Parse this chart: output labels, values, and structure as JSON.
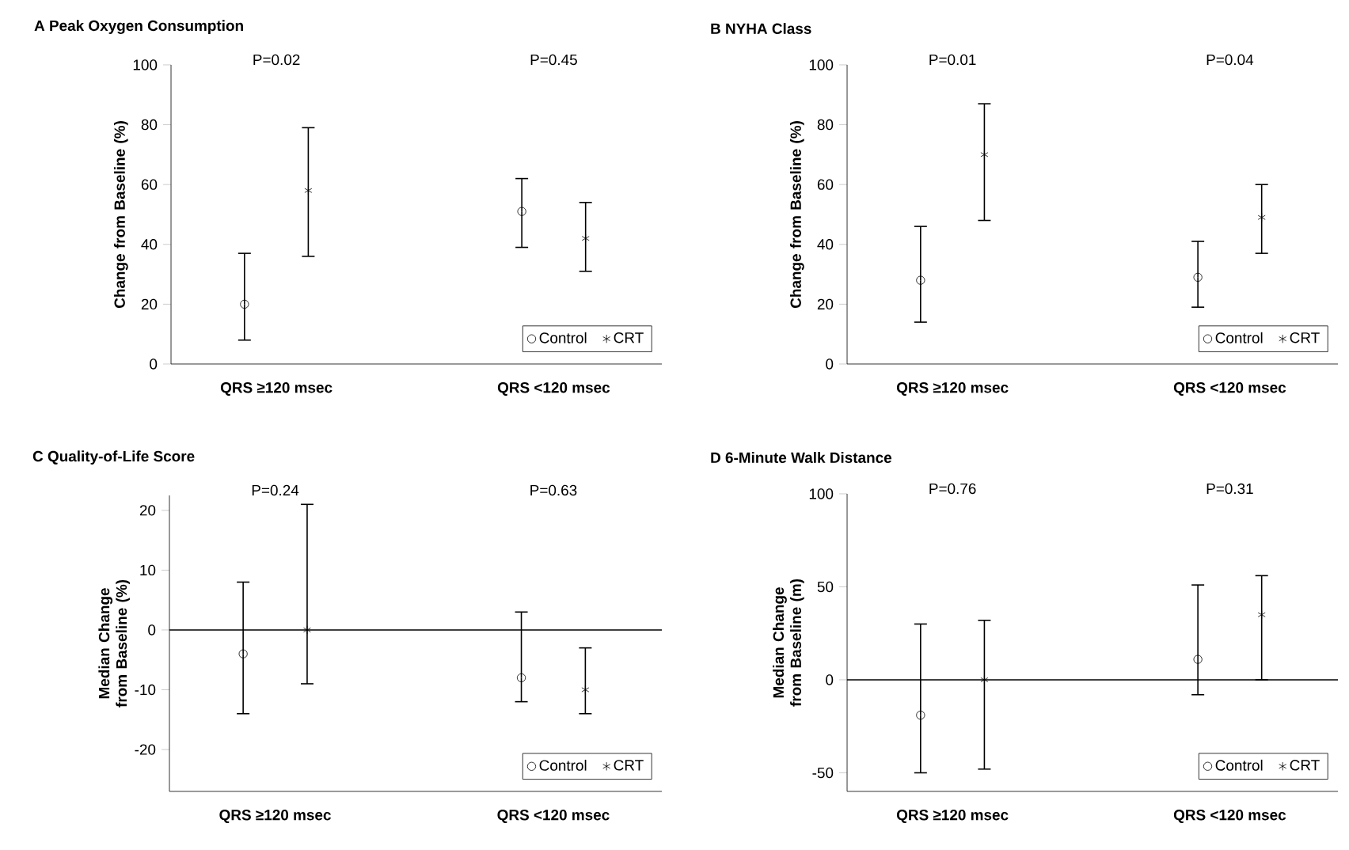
{
  "chart_data": [
    {
      "type": "scatter",
      "title": "A  Peak Oxygen Consumption",
      "ylabel": "Change from Baseline (%)",
      "categories": [
        "QRS ≥120 msec",
        "QRS <120 msec"
      ],
      "annotations": [
        "P=0.02",
        "P=0.45"
      ],
      "ylim": [
        0,
        100
      ],
      "yticks": [
        0,
        20,
        40,
        60,
        80,
        100
      ],
      "legend": "bottom right",
      "series": [
        {
          "name": "Control",
          "color": "#000000",
          "marker": "circle",
          "values": [
            20,
            51
          ],
          "errors": [
            [
              8,
              37
            ],
            [
              39,
              62
            ]
          ]
        },
        {
          "name": "CRT",
          "color": "#000000",
          "marker": "cross",
          "values": [
            58,
            42
          ],
          "errors": [
            [
              36,
              79
            ],
            [
              31,
              54
            ]
          ]
        }
      ]
    },
    {
      "type": "scatter",
      "title": "B  NYHA Class",
      "ylabel": "Change from Baseline (%)",
      "categories": [
        "QRS ≥120 msec",
        "QRS <120 msec"
      ],
      "annotations": [
        "P=0.01",
        "P=0.04"
      ],
      "ylim": [
        0,
        100
      ],
      "yticks": [
        0,
        20,
        40,
        60,
        80,
        100
      ],
      "legend": "bottom right",
      "series": [
        {
          "name": "Control",
          "color": "#000000",
          "marker": "circle",
          "values": [
            28,
            29
          ],
          "errors": [
            [
              14,
              46
            ],
            [
              19,
              41
            ]
          ]
        },
        {
          "name": "CRT",
          "color": "#000000",
          "marker": "cross",
          "values": [
            70,
            49
          ],
          "errors": [
            [
              48,
              87
            ],
            [
              37,
              60
            ]
          ]
        }
      ]
    },
    {
      "type": "scatter",
      "title": "C  Quality-of-Life Score",
      "ylabel": "Median Change from Baseline (%)",
      "categories": [
        "QRS ≥120 msec",
        "QRS <120 msec"
      ],
      "annotations": [
        "P=0.24",
        "P=0.63"
      ],
      "ylim": [
        -27,
        22.5
      ],
      "yticks": [
        -20,
        -10,
        0,
        10,
        20
      ],
      "legend": "bottom right",
      "ref_lines": [
        {
          "axis": "y",
          "value": 0
        }
      ],
      "series": [
        {
          "name": "Control",
          "color": "#000000",
          "marker": "circle",
          "values": [
            -4,
            -8
          ],
          "errors": [
            [
              -14,
              8
            ],
            [
              -12,
              3
            ]
          ]
        },
        {
          "name": "CRT",
          "color": "#000000",
          "marker": "cross",
          "values": [
            0,
            -10
          ],
          "errors": [
            [
              -9,
              21
            ],
            [
              -14,
              -3
            ]
          ]
        }
      ]
    },
    {
      "type": "scatter",
      "title": "D  6-Minute Walk Distance",
      "ylabel": "Median Change from Baseline (m)",
      "categories": [
        "QRS ≥120 msec",
        "QRS <120 msec"
      ],
      "annotations": [
        "P=0.76",
        "P=0.31"
      ],
      "ylim": [
        -60,
        100
      ],
      "yticks": [
        -50,
        0,
        50,
        100
      ],
      "legend": "bottom right",
      "ref_lines": [
        {
          "axis": "y",
          "value": 0
        }
      ],
      "series": [
        {
          "name": "Control",
          "color": "#000000",
          "marker": "circle",
          "values": [
            -19,
            11
          ],
          "errors": [
            [
              -50,
              30
            ],
            [
              -8,
              51
            ]
          ]
        },
        {
          "name": "CRT",
          "color": "#000000",
          "marker": "cross",
          "values": [
            0,
            35
          ],
          "errors": [
            [
              -48,
              32
            ],
            [
              0,
              56
            ]
          ]
        }
      ]
    }
  ]
}
